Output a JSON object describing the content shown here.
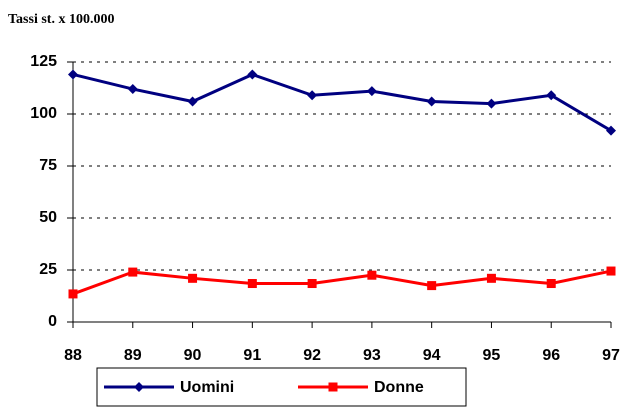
{
  "chart_data": {
    "type": "line",
    "title": "Tassi st. x 100.000",
    "x": [
      88,
      89,
      90,
      91,
      92,
      93,
      94,
      95,
      96,
      97
    ],
    "xlim": [
      88,
      97
    ],
    "xticks": [
      88,
      89,
      90,
      91,
      92,
      93,
      94,
      95,
      96,
      97
    ],
    "ylim": [
      0,
      125
    ],
    "yticks": [
      0,
      25,
      50,
      75,
      100,
      125
    ],
    "grid": true,
    "legend": "bottom",
    "series": [
      {
        "name": "Uomini",
        "color": "#000080",
        "marker": "diamond",
        "values": [
          119,
          112,
          106,
          119,
          109,
          111,
          106,
          105,
          109,
          92
        ]
      },
      {
        "name": "Donne",
        "color": "#ff0000",
        "marker": "square",
        "values": [
          13.5,
          24,
          21,
          18.5,
          18.5,
          22.5,
          17.5,
          21,
          18.5,
          24.5
        ]
      }
    ]
  }
}
